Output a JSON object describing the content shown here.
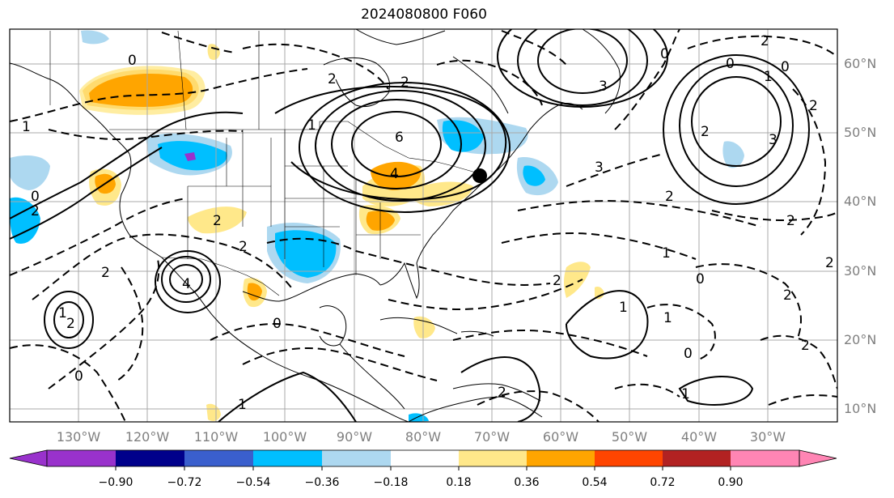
{
  "title": "2024080800 F060",
  "map": {
    "lat_labels": [
      "60°N",
      "50°N",
      "40°N",
      "30°N",
      "20°N",
      "10°N"
    ],
    "lon_labels": [
      "130°W",
      "120°W",
      "110°W",
      "100°W",
      "90°W",
      "80°W",
      "70°W",
      "60°W",
      "50°W",
      "40°W",
      "30°W"
    ],
    "contour_labels": [
      "0",
      "2",
      "1",
      "2",
      "6",
      "4",
      "1",
      "2",
      "0",
      "3",
      "2",
      "1",
      "0",
      "2",
      "2",
      "4",
      "2",
      "0",
      "1",
      "2",
      "0",
      "2",
      "2",
      "1",
      "2",
      "0",
      "2",
      "0",
      "2",
      "1",
      "1",
      "1",
      "0",
      "2",
      "2",
      "3",
      "1",
      "0",
      "3",
      "2",
      "2"
    ],
    "colors": {
      "grid": "#a9a9a9",
      "coast": "#000000",
      "contour": "#000000",
      "gray_label": "#7f7f7f"
    }
  },
  "colorbar": {
    "ticks": [
      "−0.90",
      "−0.72",
      "−0.54",
      "−0.36",
      "−0.18",
      "0.18",
      "0.36",
      "0.54",
      "0.72",
      "0.90"
    ],
    "colors": [
      "#9932cc",
      "#00008b",
      "#3a5fcd",
      "#00bfff",
      "#add8f0",
      "#ffffff",
      "#ffe88a",
      "#ffa500",
      "#ff4500",
      "#b22222",
      "#ff85b4"
    ]
  }
}
